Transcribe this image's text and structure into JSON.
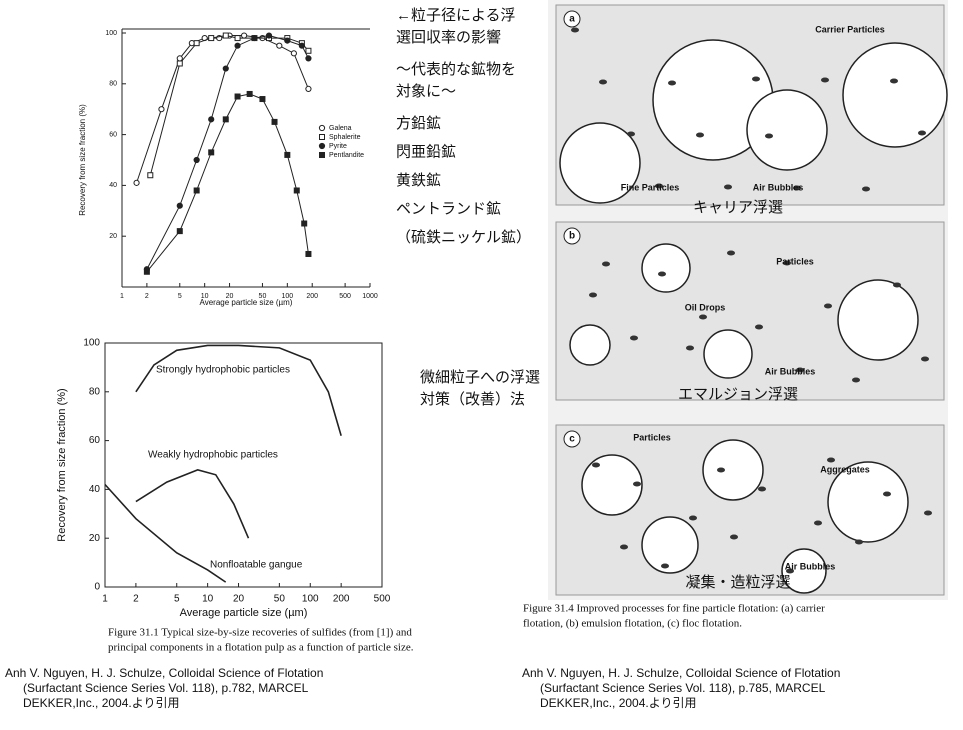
{
  "chart_data": [
    {
      "type": "line",
      "xlabel": "Average particle size (µm)",
      "ylabel": "Recovery from size fraction (%)",
      "xscale": "log",
      "xlim": [
        1,
        1000
      ],
      "ylim": [
        0,
        100
      ],
      "xticks": [
        1,
        2,
        5,
        10,
        20,
        50,
        100,
        200,
        500,
        1000
      ],
      "yticks": [
        20,
        40,
        60,
        80,
        100
      ],
      "legend": "right",
      "series": [
        {
          "name": "Galena",
          "color": "#222",
          "marker": "circle",
          "filled": false,
          "x": [
            1.5,
            3,
            5,
            7,
            10,
            15,
            20,
            30,
            50,
            80,
            120,
            180
          ],
          "values": [
            41,
            70,
            90,
            96,
            98,
            98,
            99,
            99,
            98,
            95,
            92,
            78
          ]
        },
        {
          "name": "Sphalerite",
          "color": "#222",
          "marker": "square",
          "filled": false,
          "x": [
            2.2,
            5,
            8,
            12,
            18,
            25,
            40,
            60,
            100,
            150,
            180
          ],
          "values": [
            44,
            88,
            96,
            98,
            99,
            98,
            98,
            98,
            98,
            96,
            93
          ]
        },
        {
          "name": "Pyrite",
          "color": "#222",
          "marker": "circle",
          "filled": true,
          "x": [
            2,
            5,
            8,
            12,
            18,
            25,
            40,
            60,
            100,
            150,
            180
          ],
          "values": [
            7,
            32,
            50,
            66,
            86,
            95,
            98,
            99,
            97,
            95,
            90
          ]
        },
        {
          "name": "Pentlandite",
          "color": "#222",
          "marker": "square",
          "filled": true,
          "x": [
            2,
            5,
            8,
            12,
            18,
            25,
            35,
            50,
            70,
            100,
            130,
            160,
            180
          ],
          "values": [
            6,
            22,
            38,
            53,
            66,
            75,
            76,
            74,
            65,
            52,
            38,
            25,
            13
          ]
        }
      ]
    },
    {
      "type": "line",
      "xlabel": "Average particle size (µm)",
      "ylabel": "Recovery from size fraction (%)",
      "xscale": "log",
      "xlim": [
        1,
        500
      ],
      "ylim": [
        0,
        100
      ],
      "xticks": [
        1,
        2,
        5,
        10,
        20,
        50,
        100,
        200,
        500
      ],
      "yticks": [
        0,
        20,
        40,
        60,
        80,
        100
      ],
      "caption": [
        "Figure 31.1 Typical size-by-size recoveries of sulfides (from [1]) and",
        "principal components in a flotation pulp as a function of particle size."
      ],
      "series": [
        {
          "name": "Strongly hydrophobic particles",
          "color": "#222",
          "x": [
            2,
            3,
            5,
            10,
            20,
            50,
            100,
            150,
            200
          ],
          "values": [
            80,
            91,
            97,
            99,
            99,
            98,
            93,
            80,
            62
          ]
        },
        {
          "name": "Weakly hydrophobic particles",
          "color": "#222",
          "x": [
            2,
            4,
            8,
            12,
            18,
            25
          ],
          "values": [
            35,
            43,
            48,
            46,
            34,
            20
          ]
        },
        {
          "name": "Nonfloatable gangue",
          "color": "#222",
          "x": [
            1,
            2,
            5,
            10,
            15
          ],
          "values": [
            42,
            28,
            14,
            7,
            2
          ]
        }
      ]
    }
  ],
  "notes": {
    "effect": [
      "←粒子径による浮",
      "選回収率の影響"
    ],
    "target": [
      "～代表的な鉱物を",
      "対象に～"
    ],
    "minerals": [
      "方鉛鉱",
      "閃亜鉛鉱",
      "黄鉄鉱",
      "ペントランド鉱",
      "（硫鉄ニッケル鉱）"
    ],
    "measures": [
      "微細粒子への浮選",
      "対策（改善）法"
    ]
  },
  "diagram": {
    "panels": [
      {
        "letter": "a",
        "labels": [
          "Carrier Particles",
          "Fine Particles",
          "Air Bubbles"
        ],
        "caption": "キャリア浮選"
      },
      {
        "letter": "b",
        "labels": [
          "Particles",
          "Oil Drops",
          "Air Bubbles"
        ],
        "caption": "エマルジョン浮選"
      },
      {
        "letter": "c",
        "labels": [
          "Particles",
          "Aggregates",
          "Air Bubbles"
        ],
        "caption": "凝集・造粒浮選"
      }
    ],
    "figure_caption": [
      "Figure 31.4    Improved processes for fine particle flotation: (a) carrier",
      "flotation, (b) emulsion flotation, (c) floc flotation."
    ]
  },
  "references": [
    [
      "Anh V. Nguyen, H. J. Schulze, Colloidal Science of Flotation",
      "(Surfactant Science Series Vol. 118), p.782, MARCEL",
      "DEKKER,Inc., 2004.より引用"
    ],
    [
      "Anh V. Nguyen, H. J. Schulze, Colloidal Science of Flotation",
      "(Surfactant Science Series Vol. 118), p.785, MARCEL",
      "DEKKER,Inc., 2004.より引用"
    ]
  ]
}
